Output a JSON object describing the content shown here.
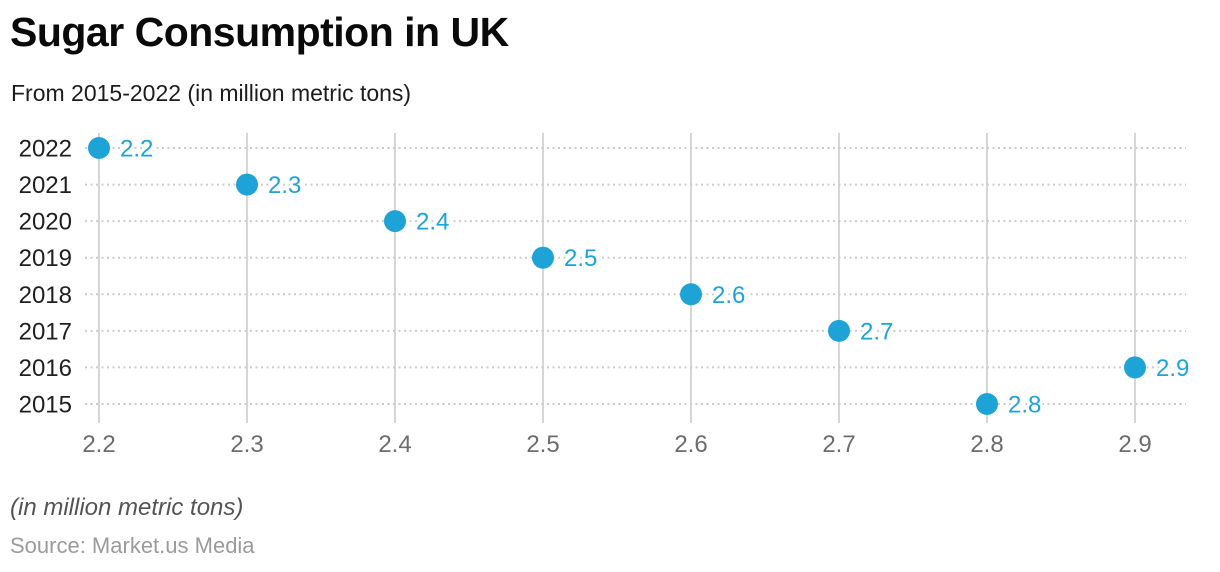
{
  "header": {
    "title": "Sugar Consumption in UK",
    "subtitle": "From 2015-2022 (in million metric tons)"
  },
  "footer": {
    "unit_note": "(in million metric tons)",
    "source": "Source: Market.us Media"
  },
  "chart_data": {
    "type": "scatter",
    "orientation": "horizontal-dot-plot",
    "title": "Sugar Consumption in UK",
    "subtitle": "From 2015-2022 (in million metric tons)",
    "categories": [
      "2022",
      "2021",
      "2020",
      "2019",
      "2018",
      "2017",
      "2016",
      "2015"
    ],
    "values": [
      2.2,
      2.3,
      2.4,
      2.5,
      2.6,
      2.7,
      2.9,
      2.8
    ],
    "value_labels": [
      "2.2",
      "2.3",
      "2.4",
      "2.5",
      "2.6",
      "2.7",
      "2.9",
      "2.8"
    ],
    "x_ticks": [
      "2.2",
      "2.3",
      "2.4",
      "2.5",
      "2.6",
      "2.7",
      "2.8",
      "2.9"
    ],
    "x_tick_values": [
      2.2,
      2.3,
      2.4,
      2.5,
      2.6,
      2.7,
      2.8,
      2.9
    ],
    "xlim": [
      2.2,
      2.9
    ],
    "ylabel": "",
    "xlabel": "",
    "grid": true,
    "legend": "none",
    "point_color": "#1ea3d6",
    "value_label_color": "#1ea3d6"
  }
}
